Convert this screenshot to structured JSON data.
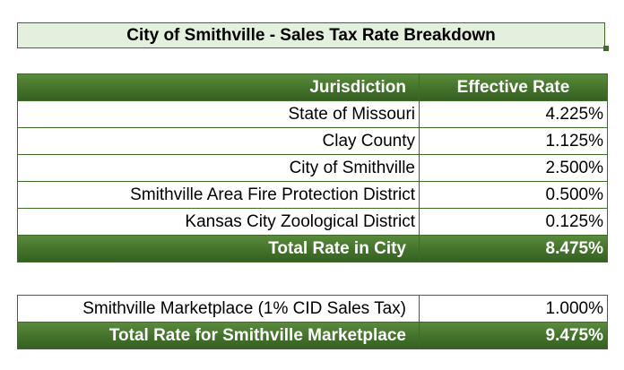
{
  "title": "City of Smithville - Sales Tax Rate Breakdown",
  "main_table": {
    "headers": {
      "jurisdiction": "Jurisdiction",
      "rate": "Effective Rate"
    },
    "rows": [
      {
        "jurisdiction": "State of Missouri",
        "rate": "4.225%"
      },
      {
        "jurisdiction": "Clay County",
        "rate": "1.125%"
      },
      {
        "jurisdiction": "City of Smithville",
        "rate": "2.500%"
      },
      {
        "jurisdiction": "Smithville Area Fire Protection District",
        "rate": "0.500%"
      },
      {
        "jurisdiction": "Kansas City Zoological District",
        "rate": "0.125%"
      }
    ],
    "total": {
      "label": "Total Rate in City",
      "rate": "8.475%"
    }
  },
  "cid_table": {
    "row": {
      "label": "Smithville Marketplace (1% CID Sales Tax)",
      "rate": "1.000%"
    },
    "total": {
      "label": "Total Rate for Smithville Marketplace",
      "rate": "9.475%"
    }
  },
  "colors": {
    "header_green": "#42722a",
    "title_fill": "#e3f0de",
    "border": "#3f6b2a"
  }
}
